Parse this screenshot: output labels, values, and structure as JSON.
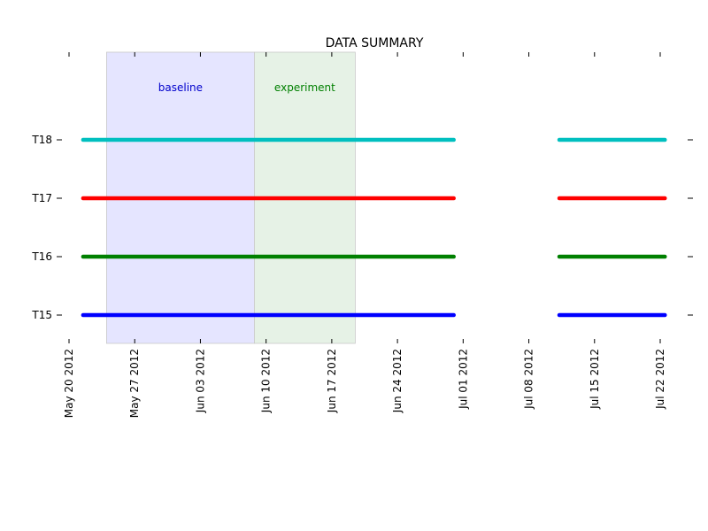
{
  "chart_data": {
    "type": "timeline",
    "title": "DATA SUMMARY",
    "xlabel": "",
    "ylabel": "",
    "x_axis": {
      "type": "date",
      "range": [
        "2012-05-20",
        "2012-07-23"
      ],
      "ticks": [
        "2012-05-20",
        "2012-05-27",
        "2012-06-03",
        "2012-06-10",
        "2012-06-17",
        "2012-06-24",
        "2012-07-01",
        "2012-07-08",
        "2012-07-15",
        "2012-07-22"
      ],
      "tick_labels": [
        "May 20 2012",
        "May 27 2012",
        "Jun 03 2012",
        "Jun 10 2012",
        "Jun 17 2012",
        "Jun 24 2012",
        "Jul 01 2012",
        "Jul 08 2012",
        "Jul 15 2012",
        "Jul 22 2012"
      ]
    },
    "categories": [
      "T15",
      "T16",
      "T17",
      "T18"
    ],
    "periods": [
      {
        "label": "baseline",
        "start": "2012-05-24",
        "end": "2012-06-08 18:00",
        "color": "#0000cc",
        "fill": "#e5e5ff"
      },
      {
        "label": "experiment",
        "start": "2012-06-08 18:00",
        "end": "2012-06-19 12:00",
        "color": "#008000",
        "fill": "#e6f2e6"
      }
    ],
    "series": [
      {
        "name": "T15",
        "color": "#0000ff",
        "segments": [
          [
            "2012-05-21 12:00",
            "2012-06-30"
          ],
          [
            "2012-07-11 06:00",
            "2012-07-22 12:00"
          ]
        ]
      },
      {
        "name": "T16",
        "color": "#008000",
        "segments": [
          [
            "2012-05-21 12:00",
            "2012-06-30"
          ],
          [
            "2012-07-11 06:00",
            "2012-07-22 12:00"
          ]
        ]
      },
      {
        "name": "T17",
        "color": "#ff0000",
        "segments": [
          [
            "2012-05-21 12:00",
            "2012-06-30"
          ],
          [
            "2012-07-11 06:00",
            "2012-07-22 12:00"
          ]
        ]
      },
      {
        "name": "T18",
        "color": "#00bfbf",
        "segments": [
          [
            "2012-05-21 12:00",
            "2012-06-30"
          ],
          [
            "2012-07-11 06:00",
            "2012-07-22 12:00"
          ]
        ]
      }
    ]
  }
}
